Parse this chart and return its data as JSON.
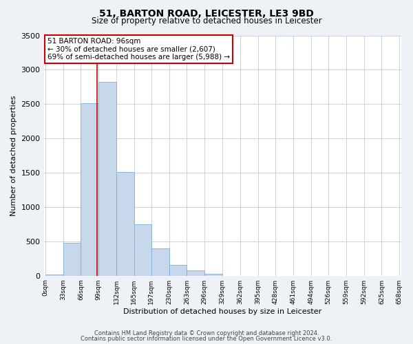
{
  "title": "51, BARTON ROAD, LEICESTER, LE3 9BD",
  "subtitle": "Size of property relative to detached houses in Leicester",
  "xlabel": "Distribution of detached houses by size in Leicester",
  "ylabel": "Number of detached properties",
  "bar_edges": [
    0,
    33,
    66,
    99,
    132,
    165,
    197,
    230,
    263,
    296,
    329,
    362,
    395,
    428,
    461,
    494,
    526,
    559,
    592,
    625,
    658
  ],
  "bar_heights": [
    20,
    480,
    2510,
    2820,
    1510,
    750,
    400,
    155,
    75,
    30,
    0,
    0,
    0,
    0,
    0,
    0,
    0,
    0,
    0,
    0
  ],
  "bar_color": "#c8d8ec",
  "bar_edge_color": "#7bafd4",
  "property_line_x": 96,
  "property_line_color": "#cc0000",
  "annotation_line1": "51 BARTON ROAD: 96sqm",
  "annotation_line2": "← 30% of detached houses are smaller (2,607)",
  "annotation_line3": "69% of semi-detached houses are larger (5,988) →",
  "annotation_box_color": "#cc0000",
  "annotation_box_facecolor": "#ffffff",
  "ylim": [
    0,
    3500
  ],
  "yticks": [
    0,
    500,
    1000,
    1500,
    2000,
    2500,
    3000,
    3500
  ],
  "xtick_labels": [
    "0sqm",
    "33sqm",
    "66sqm",
    "99sqm",
    "132sqm",
    "165sqm",
    "197sqm",
    "230sqm",
    "263sqm",
    "296sqm",
    "329sqm",
    "362sqm",
    "395sqm",
    "428sqm",
    "461sqm",
    "494sqm",
    "526sqm",
    "559sqm",
    "592sqm",
    "625sqm",
    "658sqm"
  ],
  "footer_line1": "Contains HM Land Registry data © Crown copyright and database right 2024.",
  "footer_line2": "Contains public sector information licensed under the Open Government Licence v3.0.",
  "background_color": "#eef2f7",
  "plot_bg_color": "#ffffff",
  "grid_color": "#c0ccd8",
  "title_fontsize": 10,
  "subtitle_fontsize": 8.5,
  "ylabel_fontsize": 8,
  "xlabel_fontsize": 8,
  "ytick_fontsize": 8,
  "xtick_fontsize": 6.5,
  "annotation_fontsize": 7.5,
  "footer_fontsize": 6
}
